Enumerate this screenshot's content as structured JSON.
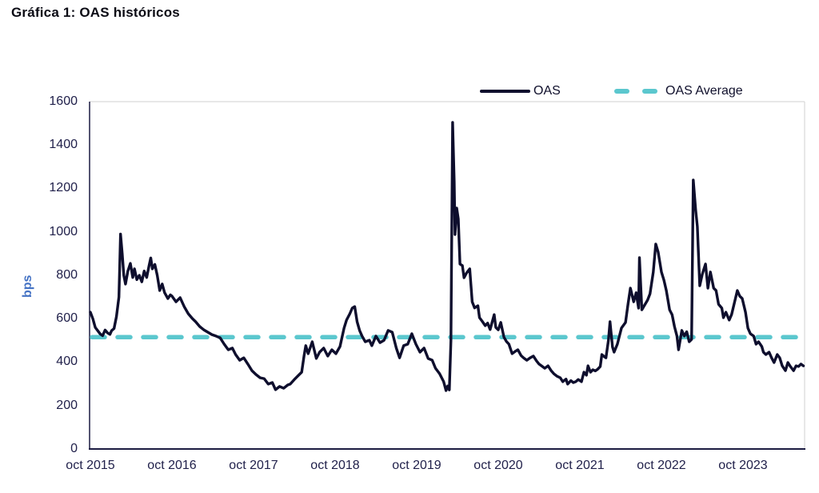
{
  "chart_data": {
    "type": "line",
    "title": "Gráfica 1: OAS históricos",
    "xlabel": "",
    "ylabel": "bps",
    "ylim": [
      0,
      1600
    ],
    "xlim_dates": [
      2015.75,
      2024.53
    ],
    "grid": false,
    "legend_position": "top",
    "legend": [
      "OAS",
      "OAS Average"
    ],
    "y_ticks": [
      0,
      200,
      400,
      600,
      800,
      1000,
      1200,
      1400,
      1600
    ],
    "x_tick_labels": [
      "oct 2015",
      "oct 2016",
      "oct 2017",
      "oct 2018",
      "oct 2019",
      "oct 2020",
      "oct 2021",
      "oct 2022",
      "oct 2023"
    ],
    "series": [
      {
        "name": "OAS",
        "style": "solid",
        "color": "#0e0e2d",
        "points": [
          [
            2015.75,
            630
          ],
          [
            2015.78,
            600
          ],
          [
            2015.81,
            560
          ],
          [
            2015.84,
            545
          ],
          [
            2015.87,
            530
          ],
          [
            2015.9,
            522
          ],
          [
            2015.93,
            548
          ],
          [
            2015.96,
            535
          ],
          [
            2015.99,
            528
          ],
          [
            2016.01,
            545
          ],
          [
            2016.04,
            555
          ],
          [
            2016.07,
            610
          ],
          [
            2016.1,
            700
          ],
          [
            2016.12,
            990
          ],
          [
            2016.14,
            900
          ],
          [
            2016.16,
            800
          ],
          [
            2016.18,
            760
          ],
          [
            2016.21,
            820
          ],
          [
            2016.24,
            855
          ],
          [
            2016.27,
            790
          ],
          [
            2016.29,
            830
          ],
          [
            2016.32,
            780
          ],
          [
            2016.35,
            800
          ],
          [
            2016.38,
            770
          ],
          [
            2016.41,
            820
          ],
          [
            2016.44,
            790
          ],
          [
            2016.47,
            845
          ],
          [
            2016.49,
            880
          ],
          [
            2016.51,
            830
          ],
          [
            2016.54,
            850
          ],
          [
            2016.57,
            800
          ],
          [
            2016.6,
            730
          ],
          [
            2016.63,
            760
          ],
          [
            2016.66,
            720
          ],
          [
            2016.7,
            693
          ],
          [
            2016.73,
            710
          ],
          [
            2016.75,
            704
          ],
          [
            2016.8,
            678
          ],
          [
            2016.85,
            697
          ],
          [
            2016.9,
            656
          ],
          [
            2016.95,
            623
          ],
          [
            2017.0,
            601
          ],
          [
            2017.04,
            586
          ],
          [
            2017.09,
            564
          ],
          [
            2017.14,
            549
          ],
          [
            2017.19,
            538
          ],
          [
            2017.24,
            527
          ],
          [
            2017.29,
            520
          ],
          [
            2017.34,
            512
          ],
          [
            2017.39,
            483
          ],
          [
            2017.44,
            457
          ],
          [
            2017.49,
            465
          ],
          [
            2017.53,
            435
          ],
          [
            2017.58,
            409
          ],
          [
            2017.63,
            420
          ],
          [
            2017.68,
            391
          ],
          [
            2017.73,
            361
          ],
          [
            2017.78,
            343
          ],
          [
            2017.83,
            328
          ],
          [
            2017.88,
            324
          ],
          [
            2017.93,
            299
          ],
          [
            2017.98,
            306
          ],
          [
            2018.02,
            273
          ],
          [
            2018.07,
            288
          ],
          [
            2018.12,
            280
          ],
          [
            2018.17,
            295
          ],
          [
            2018.2,
            299
          ],
          [
            2018.25,
            320
          ],
          [
            2018.29,
            335
          ],
          [
            2018.34,
            354
          ],
          [
            2018.37,
            430
          ],
          [
            2018.39,
            476
          ],
          [
            2018.42,
            439
          ],
          [
            2018.47,
            494
          ],
          [
            2018.52,
            417
          ],
          [
            2018.56,
            446
          ],
          [
            2018.61,
            465
          ],
          [
            2018.66,
            428
          ],
          [
            2018.71,
            457
          ],
          [
            2018.76,
            439
          ],
          [
            2018.81,
            472
          ],
          [
            2018.86,
            557
          ],
          [
            2018.89,
            594
          ],
          [
            2018.93,
            623
          ],
          [
            2018.96,
            649
          ],
          [
            2018.99,
            656
          ],
          [
            2019.02,
            586
          ],
          [
            2019.05,
            546
          ],
          [
            2019.08,
            520
          ],
          [
            2019.12,
            494
          ],
          [
            2019.17,
            501
          ],
          [
            2019.2,
            476
          ],
          [
            2019.25,
            520
          ],
          [
            2019.3,
            490
          ],
          [
            2019.35,
            501
          ],
          [
            2019.4,
            546
          ],
          [
            2019.45,
            538
          ],
          [
            2019.5,
            465
          ],
          [
            2019.54,
            420
          ],
          [
            2019.59,
            476
          ],
          [
            2019.64,
            483
          ],
          [
            2019.69,
            531
          ],
          [
            2019.74,
            483
          ],
          [
            2019.79,
            446
          ],
          [
            2019.84,
            465
          ],
          [
            2019.89,
            417
          ],
          [
            2019.94,
            409
          ],
          [
            2019.98,
            372
          ],
          [
            2020.03,
            347
          ],
          [
            2020.08,
            310
          ],
          [
            2020.11,
            269
          ],
          [
            2020.13,
            290
          ],
          [
            2020.15,
            272
          ],
          [
            2020.17,
            500
          ],
          [
            2020.19,
            1504
          ],
          [
            2020.21,
            1230
          ],
          [
            2020.22,
            988
          ],
          [
            2020.24,
            1110
          ],
          [
            2020.26,
            1060
          ],
          [
            2020.28,
            852
          ],
          [
            2020.31,
            845
          ],
          [
            2020.33,
            789
          ],
          [
            2020.36,
            810
          ],
          [
            2020.4,
            830
          ],
          [
            2020.43,
            678
          ],
          [
            2020.46,
            650
          ],
          [
            2020.5,
            660
          ],
          [
            2020.52,
            605
          ],
          [
            2020.55,
            590
          ],
          [
            2020.59,
            568
          ],
          [
            2020.62,
            580
          ],
          [
            2020.65,
            550
          ],
          [
            2020.7,
            619
          ],
          [
            2020.72,
            560
          ],
          [
            2020.75,
            549
          ],
          [
            2020.78,
            583
          ],
          [
            2020.82,
            515
          ],
          [
            2020.85,
            495
          ],
          [
            2020.88,
            483
          ],
          [
            2020.92,
            439
          ],
          [
            2020.96,
            450
          ],
          [
            2020.99,
            457
          ],
          [
            2021.03,
            430
          ],
          [
            2021.06,
            420
          ],
          [
            2021.1,
            409
          ],
          [
            2021.14,
            420
          ],
          [
            2021.18,
            428
          ],
          [
            2021.22,
            405
          ],
          [
            2021.25,
            391
          ],
          [
            2021.29,
            380
          ],
          [
            2021.32,
            372
          ],
          [
            2021.36,
            383
          ],
          [
            2021.4,
            360
          ],
          [
            2021.43,
            347
          ],
          [
            2021.47,
            335
          ],
          [
            2021.51,
            328
          ],
          [
            2021.54,
            310
          ],
          [
            2021.58,
            322
          ],
          [
            2021.6,
            299
          ],
          [
            2021.64,
            315
          ],
          [
            2021.67,
            306
          ],
          [
            2021.7,
            310
          ],
          [
            2021.73,
            320
          ],
          [
            2021.77,
            310
          ],
          [
            2021.8,
            354
          ],
          [
            2021.83,
            340
          ],
          [
            2021.85,
            383
          ],
          [
            2021.88,
            354
          ],
          [
            2021.91,
            365
          ],
          [
            2021.94,
            360
          ],
          [
            2021.97,
            368
          ],
          [
            2022.0,
            380
          ],
          [
            2022.02,
            435
          ],
          [
            2022.05,
            425
          ],
          [
            2022.07,
            420
          ],
          [
            2022.1,
            500
          ],
          [
            2022.12,
            586
          ],
          [
            2022.15,
            470
          ],
          [
            2022.17,
            446
          ],
          [
            2022.21,
            483
          ],
          [
            2022.26,
            557
          ],
          [
            2022.31,
            583
          ],
          [
            2022.34,
            667
          ],
          [
            2022.37,
            741
          ],
          [
            2022.41,
            678
          ],
          [
            2022.44,
            720
          ],
          [
            2022.47,
            649
          ],
          [
            2022.48,
            881
          ],
          [
            2022.51,
            641
          ],
          [
            2022.55,
            667
          ],
          [
            2022.58,
            686
          ],
          [
            2022.61,
            715
          ],
          [
            2022.65,
            815
          ],
          [
            2022.68,
            944
          ],
          [
            2022.71,
            907
          ],
          [
            2022.75,
            815
          ],
          [
            2022.78,
            778
          ],
          [
            2022.81,
            730
          ],
          [
            2022.85,
            641
          ],
          [
            2022.88,
            619
          ],
          [
            2022.91,
            564
          ],
          [
            2022.94,
            520
          ],
          [
            2022.96,
            457
          ],
          [
            2023.0,
            546
          ],
          [
            2023.03,
            520
          ],
          [
            2023.06,
            540
          ],
          [
            2023.09,
            494
          ],
          [
            2023.12,
            505
          ],
          [
            2023.14,
            1239
          ],
          [
            2023.17,
            1100
          ],
          [
            2023.19,
            1025
          ],
          [
            2023.22,
            752
          ],
          [
            2023.25,
            804
          ],
          [
            2023.29,
            852
          ],
          [
            2023.32,
            741
          ],
          [
            2023.35,
            815
          ],
          [
            2023.39,
            741
          ],
          [
            2023.42,
            730
          ],
          [
            2023.45,
            667
          ],
          [
            2023.49,
            649
          ],
          [
            2023.51,
            605
          ],
          [
            2023.54,
            630
          ],
          [
            2023.58,
            594
          ],
          [
            2023.61,
            619
          ],
          [
            2023.64,
            667
          ],
          [
            2023.68,
            730
          ],
          [
            2023.71,
            704
          ],
          [
            2023.74,
            693
          ],
          [
            2023.78,
            630
          ],
          [
            2023.81,
            557
          ],
          [
            2023.84,
            531
          ],
          [
            2023.88,
            520
          ],
          [
            2023.91,
            483
          ],
          [
            2023.94,
            494
          ],
          [
            2023.98,
            472
          ],
          [
            2024.0,
            446
          ],
          [
            2024.03,
            435
          ],
          [
            2024.07,
            446
          ],
          [
            2024.1,
            420
          ],
          [
            2024.13,
            398
          ],
          [
            2024.17,
            435
          ],
          [
            2024.2,
            420
          ],
          [
            2024.23,
            383
          ],
          [
            2024.27,
            361
          ],
          [
            2024.3,
            398
          ],
          [
            2024.33,
            380
          ],
          [
            2024.37,
            361
          ],
          [
            2024.4,
            383
          ],
          [
            2024.43,
            380
          ],
          [
            2024.46,
            391
          ],
          [
            2024.49,
            383
          ]
        ]
      },
      {
        "name": "OAS Average",
        "style": "dashed",
        "color": "#5bc7ce",
        "value": 515
      }
    ]
  },
  "y_axis": {
    "label": "bps",
    "ticks": [
      "1600",
      "1400",
      "1200",
      "1000",
      "800",
      "600",
      "400",
      "200",
      "0"
    ]
  },
  "x_axis": {
    "ticks": [
      "oct 2015",
      "oct 2016",
      "oct 2017",
      "oct 2018",
      "oct 2019",
      "oct 2020",
      "oct 2021",
      "oct 2022",
      "oct 2023"
    ]
  },
  "colors": {
    "oas_line": "#0e0e2d",
    "oas_average_line": "#5bc7ce",
    "axis_line": "#1c1c42",
    "plot_border": "#d9d9d9",
    "tick_text": "#21214b",
    "ylabel_text": "#4472c4"
  }
}
